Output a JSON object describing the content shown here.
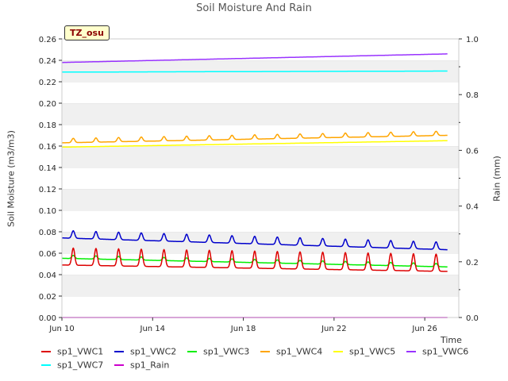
{
  "chart_data": {
    "type": "line",
    "title": "Soil Moisture And Rain",
    "site_label": "TZ_osu",
    "ylabel": "Soil Moisture (m3/m3)",
    "y2label": "Rain (mm)",
    "xlabel": "Time",
    "x_ticks": [
      "Jun 10",
      "Jun 14",
      "Jun 18",
      "Jun 22",
      "Jun 26"
    ],
    "x_tick_days": [
      10,
      14,
      18,
      22,
      26
    ],
    "xlim": [
      10,
      27.5
    ],
    "ylim": [
      0,
      0.26
    ],
    "y_ticks": [
      "0.00",
      "0.02",
      "0.04",
      "0.06",
      "0.08",
      "0.10",
      "0.12",
      "0.14",
      "0.16",
      "0.18",
      "0.20",
      "0.22",
      "0.24",
      "0.26"
    ],
    "y_tick_values": [
      0,
      0.02,
      0.04,
      0.06,
      0.08,
      0.1,
      0.12,
      0.14,
      0.16,
      0.18,
      0.2,
      0.22,
      0.24,
      0.26
    ],
    "y2lim": [
      0,
      1.0
    ],
    "y2_ticks": [
      "0.0",
      "0.2",
      "0.4",
      "0.6",
      "0.8",
      "1.0"
    ],
    "y2_tick_values": [
      0,
      0.2,
      0.4,
      0.6,
      0.8,
      1.0
    ],
    "grid": "horizontal alternating bands",
    "legend_position": "bottom",
    "series": [
      {
        "name": "sp1_VWC1",
        "color": "#dd0000",
        "axis": "left",
        "x_days": [
          10.0,
          27.0
        ],
        "start": 0.053,
        "end": 0.047,
        "daily_amp": 0.016,
        "peak_phase": 0.5
      },
      {
        "name": "sp1_VWC2",
        "color": "#0000cc",
        "axis": "left",
        "x_days": [
          10.0,
          27.0
        ],
        "start": 0.076,
        "end": 0.065,
        "daily_amp": 0.007,
        "peak_phase": 0.5
      },
      {
        "name": "sp1_VWC3",
        "color": "#00ee00",
        "axis": "left",
        "x_days": [
          10.0,
          27.0
        ],
        "start": 0.056,
        "end": 0.048,
        "daily_amp": 0.003,
        "peak_phase": 0.5
      },
      {
        "name": "sp1_VWC4",
        "color": "#ffa500",
        "axis": "left",
        "x_days": [
          10.0,
          27.0
        ],
        "start": 0.164,
        "end": 0.171,
        "daily_amp": 0.004,
        "peak_phase": 0.5
      },
      {
        "name": "sp1_VWC5",
        "color": "#ffff00",
        "axis": "left",
        "x_days": [
          10.0,
          27.0
        ],
        "start": 0.159,
        "end": 0.165,
        "daily_amp": 0.0,
        "peak_phase": 0.5
      },
      {
        "name": "sp1_VWC6",
        "color": "#9933ff",
        "axis": "left",
        "x_days": [
          10.0,
          27.0
        ],
        "start": 0.238,
        "end": 0.246,
        "daily_amp": 0.0,
        "peak_phase": 0.5
      },
      {
        "name": "sp1_VWC7",
        "color": "#00ffff",
        "axis": "left",
        "x_days": [
          10.0,
          27.0
        ],
        "start": 0.229,
        "end": 0.23,
        "daily_amp": 0.0,
        "peak_phase": 0.5
      },
      {
        "name": "sp1_Rain",
        "color": "#cc00cc",
        "axis": "right",
        "x_days": [
          10.0,
          27.0
        ],
        "start": 0.0,
        "end": 0.0,
        "daily_amp": 0.0,
        "peak_phase": 0.5
      }
    ]
  }
}
